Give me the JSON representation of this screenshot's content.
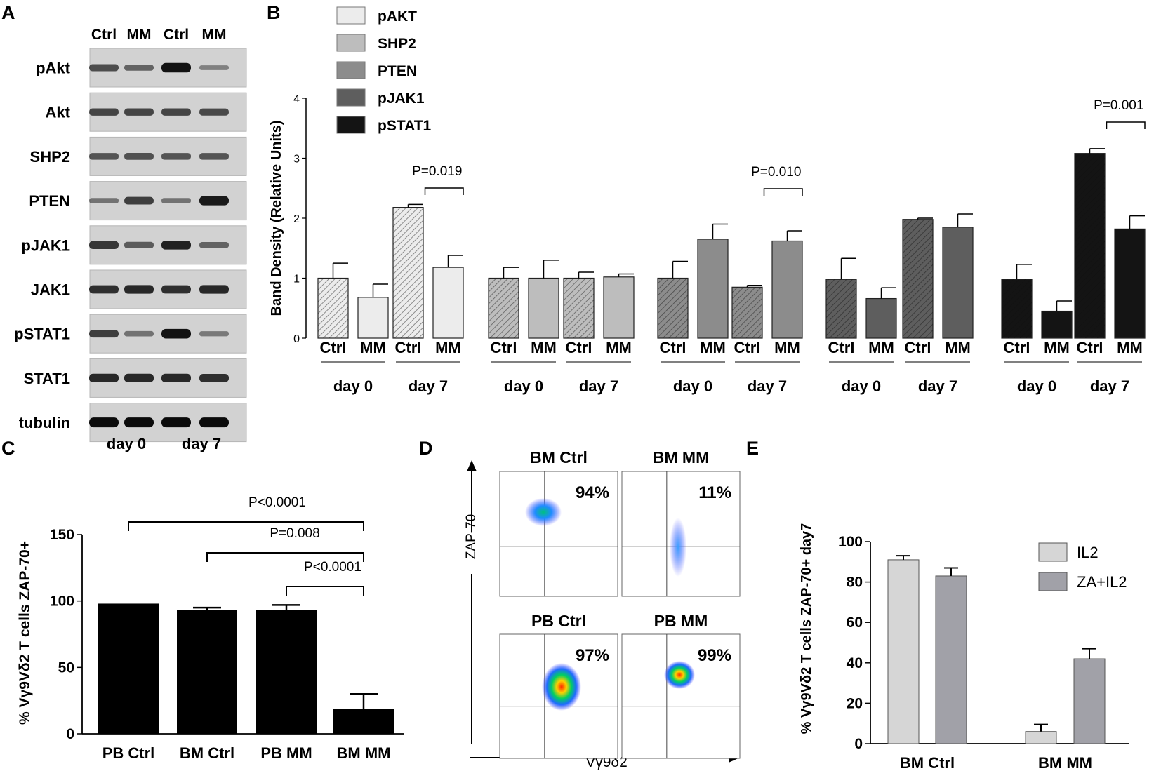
{
  "panels": {
    "A": {
      "letter": "A",
      "header_labels": [
        "Ctrl",
        "MM",
        "Ctrl",
        "MM"
      ],
      "blots": [
        {
          "label": "pAkt",
          "intensities": [
            0.55,
            0.4,
            0.95,
            0.2
          ]
        },
        {
          "label": "Akt",
          "intensities": [
            0.6,
            0.6,
            0.6,
            0.58
          ]
        },
        {
          "label": "SHP2",
          "intensities": [
            0.5,
            0.52,
            0.5,
            0.5
          ]
        },
        {
          "label": "PTEN",
          "intensities": [
            0.3,
            0.65,
            0.3,
            0.9
          ]
        },
        {
          "label": "pJAK1",
          "intensities": [
            0.7,
            0.45,
            0.85,
            0.4
          ]
        },
        {
          "label": "JAK1",
          "intensities": [
            0.75,
            0.8,
            0.75,
            0.8
          ]
        },
        {
          "label": "pSTAT1",
          "intensities": [
            0.65,
            0.3,
            0.95,
            0.25
          ]
        },
        {
          "label": "STAT1",
          "intensities": [
            0.8,
            0.8,
            0.8,
            0.75
          ]
        },
        {
          "label": "tubulin",
          "intensities": [
            1.0,
            1.0,
            1.0,
            1.0
          ]
        }
      ],
      "day_labels": [
        "day 0",
        "day 7"
      ]
    },
    "B": {
      "letter": "B"
    },
    "C": {
      "letter": "C"
    },
    "D": {
      "letter": "D",
      "y_axis_label": "ZAP-70",
      "x_axis_label": "Vγ9δ2",
      "plots": [
        {
          "title": "BM Ctrl",
          "percent": "94%",
          "cluster": "mid"
        },
        {
          "title": "BM MM",
          "percent": "11%",
          "cluster": "low"
        },
        {
          "title": "PB Ctrl",
          "percent": "97%",
          "cluster": "high"
        },
        {
          "title": "PB MM",
          "percent": "99%",
          "cluster": "high"
        }
      ]
    },
    "E": {
      "letter": "E"
    }
  },
  "chart_data": [
    {
      "panel": "B",
      "type": "bar",
      "ylabel": "Band Density (Relative Units)",
      "ylim": [
        0,
        4
      ],
      "yticks": [
        0,
        1,
        2,
        3,
        4
      ],
      "legend": [
        {
          "name": "pAKT",
          "color": "#ececec"
        },
        {
          "name": "SHP2",
          "color": "#bdbdbd"
        },
        {
          "name": "PTEN",
          "color": "#8c8c8c"
        },
        {
          "name": "pJAK1",
          "color": "#5e5e5e"
        },
        {
          "name": "pSTAT1",
          "color": "#141414"
        }
      ],
      "groups": [
        {
          "protein": "pAKT",
          "color": "#ececec",
          "day": "day 0",
          "bars": [
            {
              "label": "Ctrl",
              "value": 1.0,
              "error": 0.25
            },
            {
              "label": "MM",
              "value": 0.68,
              "error": 0.22
            }
          ]
        },
        {
          "protein": "pAKT",
          "color": "#ececec",
          "day": "day 7",
          "bars": [
            {
              "label": "Ctrl",
              "value": 2.18,
              "error": 0.05
            },
            {
              "label": "MM",
              "value": 1.18,
              "error": 0.2
            }
          ],
          "pvalue": "P=0.019"
        },
        {
          "protein": "SHP2",
          "color": "#bdbdbd",
          "day": "day 0",
          "bars": [
            {
              "label": "Ctrl",
              "value": 1.0,
              "error": 0.18
            },
            {
              "label": "MM",
              "value": 1.0,
              "error": 0.3
            }
          ]
        },
        {
          "protein": "SHP2",
          "color": "#bdbdbd",
          "day": "day 7",
          "bars": [
            {
              "label": "Ctrl",
              "value": 1.0,
              "error": 0.1
            },
            {
              "label": "MM",
              "value": 1.02,
              "error": 0.05
            }
          ]
        },
        {
          "protein": "PTEN",
          "color": "#8c8c8c",
          "day": "day 0",
          "bars": [
            {
              "label": "Ctrl",
              "value": 1.0,
              "error": 0.28
            },
            {
              "label": "MM",
              "value": 1.65,
              "error": 0.25
            }
          ]
        },
        {
          "protein": "PTEN",
          "color": "#8c8c8c",
          "day": "day 7",
          "bars": [
            {
              "label": "Ctrl",
              "value": 0.85,
              "error": 0.03
            },
            {
              "label": "MM",
              "value": 1.62,
              "error": 0.17
            }
          ],
          "pvalue": "P=0.010"
        },
        {
          "protein": "pJAK1",
          "color": "#5e5e5e",
          "day": "day 0",
          "bars": [
            {
              "label": "Ctrl",
              "value": 0.98,
              "error": 0.35
            },
            {
              "label": "MM",
              "value": 0.66,
              "error": 0.18
            }
          ]
        },
        {
          "protein": "pJAK1",
          "color": "#5e5e5e",
          "day": "day 7",
          "bars": [
            {
              "label": "Ctrl",
              "value": 1.98,
              "error": 0.02
            },
            {
              "label": "MM",
              "value": 1.85,
              "error": 0.22
            }
          ]
        },
        {
          "protein": "pSTAT1",
          "color": "#141414",
          "day": "day 0",
          "bars": [
            {
              "label": "Ctrl",
              "value": 0.98,
              "error": 0.25
            },
            {
              "label": "MM",
              "value": 0.45,
              "error": 0.17
            }
          ]
        },
        {
          "protein": "pSTAT1",
          "color": "#141414",
          "day": "day 7",
          "bars": [
            {
              "label": "Ctrl",
              "value": 3.08,
              "error": 0.08
            },
            {
              "label": "MM",
              "value": 1.82,
              "error": 0.22
            }
          ],
          "pvalue": "P=0.001"
        }
      ]
    },
    {
      "panel": "C",
      "type": "bar",
      "ylabel": "% Vγ9Vδ2  T cells ZAP-70+",
      "ylim": [
        0,
        150
      ],
      "yticks": [
        0,
        50,
        100,
        150
      ],
      "categories": [
        "PB Ctrl",
        "BM Ctrl",
        "PB MM",
        "BM MM"
      ],
      "values": [
        98,
        93,
        93,
        19
      ],
      "errors": [
        0,
        2,
        4,
        11
      ],
      "color": "#000000",
      "comparisons": [
        {
          "from": 0,
          "to": 3,
          "label": "P<0.0001"
        },
        {
          "from": 1,
          "to": 3,
          "label": "P=0.008"
        },
        {
          "from": 2,
          "to": 3,
          "label": "P<0.0001"
        }
      ]
    },
    {
      "panel": "E",
      "type": "bar",
      "ylabel": "% Vγ9Vδ2  T cells ZAP-70+  day7",
      "ylim": [
        0,
        100
      ],
      "yticks": [
        0,
        20,
        40,
        60,
        80,
        100
      ],
      "categories": [
        "BM Ctrl",
        "BM MM"
      ],
      "series": [
        {
          "name": "IL2",
          "color": "#d6d6d6",
          "values": [
            91,
            6
          ],
          "errors": [
            2,
            3.5
          ]
        },
        {
          "name": "ZA+IL2",
          "color": "#a1a1a8",
          "values": [
            83,
            42
          ],
          "errors": [
            4,
            5
          ]
        }
      ]
    }
  ]
}
